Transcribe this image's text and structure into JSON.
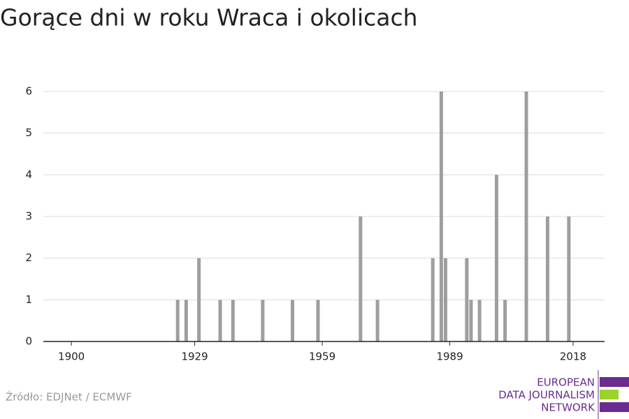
{
  "chart_data": {
    "type": "bar",
    "title": "Gorące dni w roku Wraca i okolicach",
    "x": [
      1925,
      1927,
      1930,
      1935,
      1938,
      1945,
      1952,
      1958,
      1968,
      1972,
      1985,
      1987,
      1988,
      1993,
      1994,
      1996,
      2000,
      2002,
      2007,
      2012,
      2017
    ],
    "values": [
      1,
      1,
      2,
      1,
      1,
      1,
      1,
      1,
      3,
      1,
      2,
      6,
      2,
      2,
      1,
      1,
      4,
      1,
      6,
      3,
      3
    ],
    "color": "#9e9e9e",
    "xlim": [
      1893.4,
      2025.4
    ],
    "xticks": [
      1900,
      1929,
      1959,
      1989,
      2018
    ],
    "ylim": [
      0,
      6
    ],
    "yticks": [
      0,
      1,
      2,
      3,
      4,
      5,
      6
    ],
    "grid": true,
    "source": "Źródło: EDJNet / ECMWF"
  },
  "logo": {
    "lines": [
      "EUROPEAN",
      "DATA JOURNALISM",
      "NETWORK"
    ]
  }
}
